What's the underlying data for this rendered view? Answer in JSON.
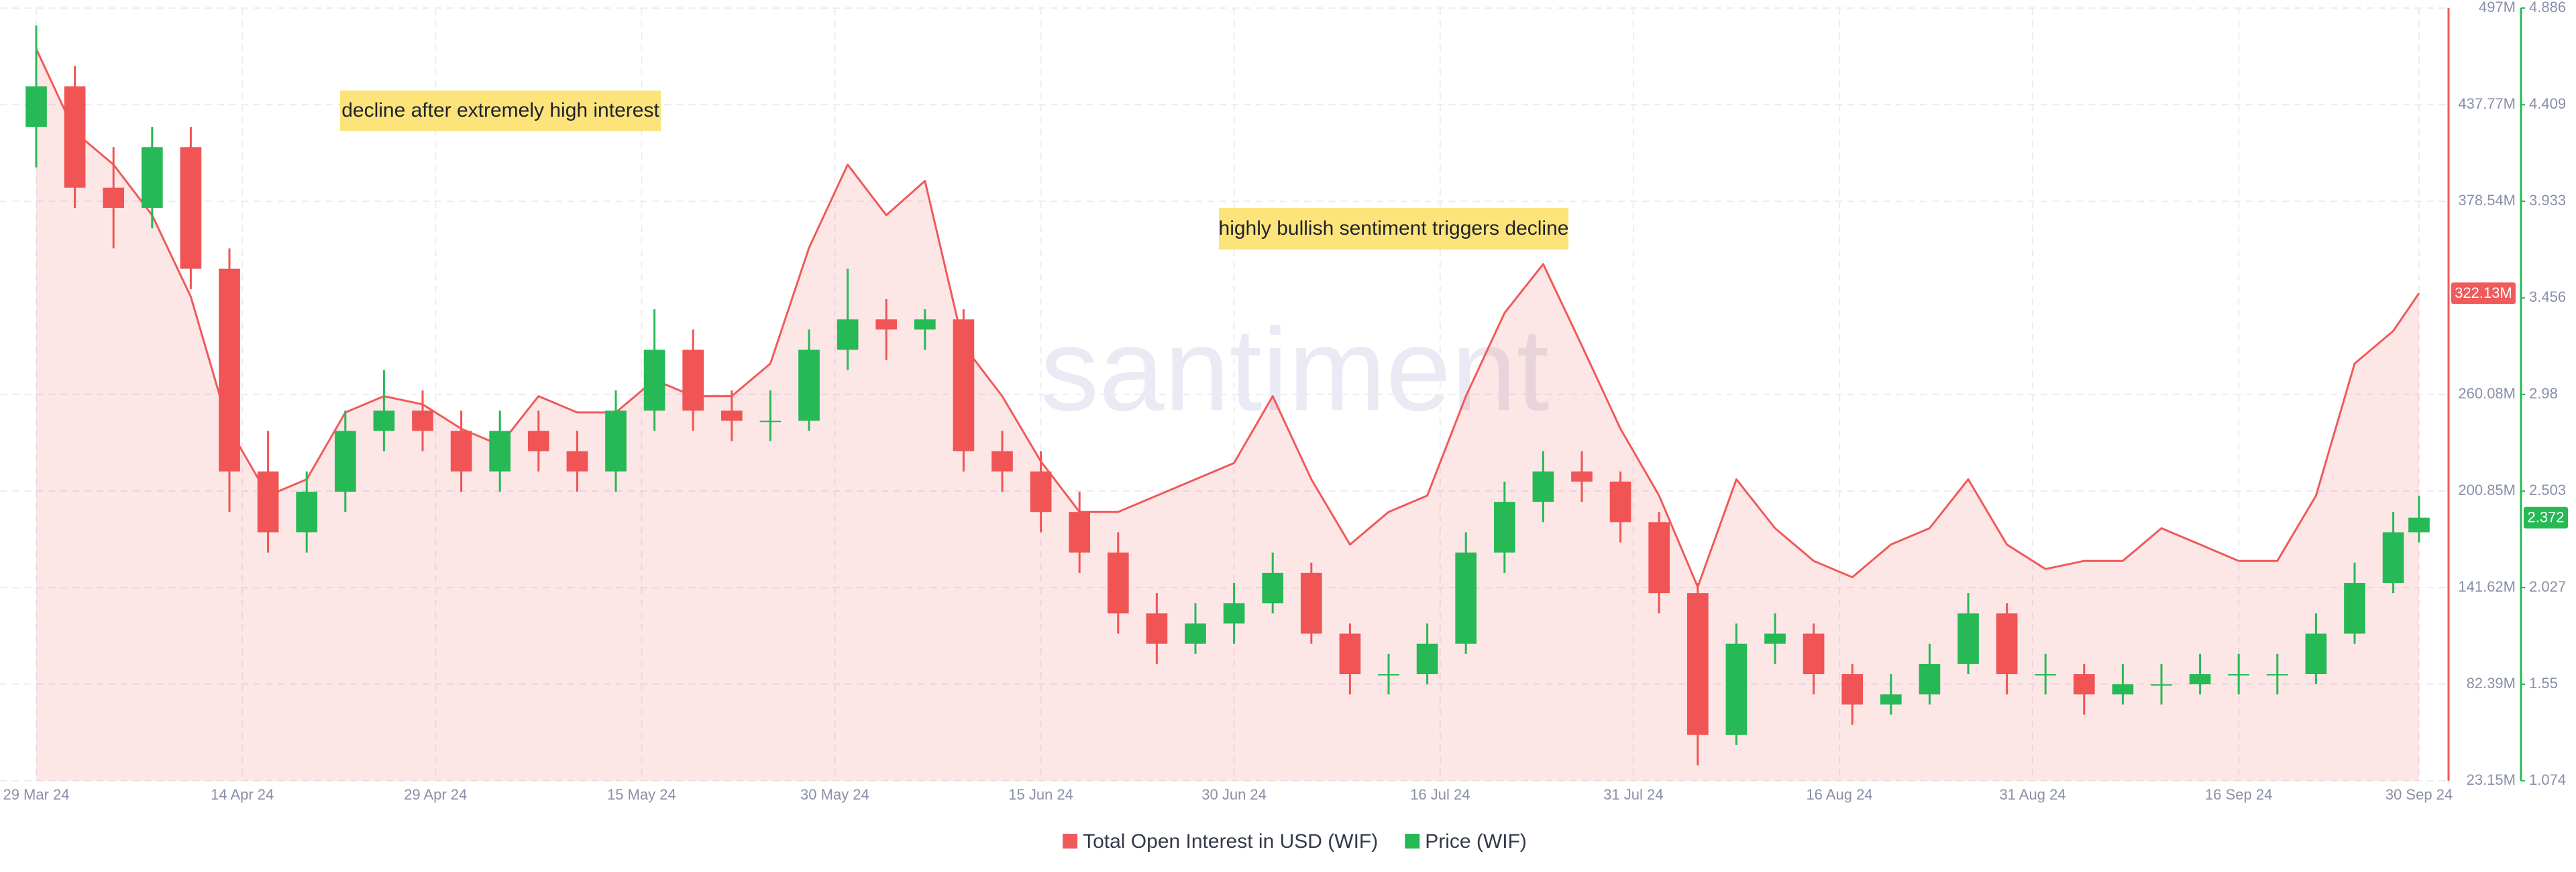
{
  "chart_data": {
    "type": "combo",
    "watermark": "santiment",
    "annotations": [
      "decline after extremely high interest",
      "highly bullish sentiment triggers decline"
    ],
    "x": [
      "2024-03-29",
      "2024-04-01",
      "2024-04-04",
      "2024-04-07",
      "2024-04-10",
      "2024-04-13",
      "2024-04-16",
      "2024-04-19",
      "2024-04-22",
      "2024-04-25",
      "2024-04-28",
      "2024-05-01",
      "2024-05-04",
      "2024-05-07",
      "2024-05-10",
      "2024-05-13",
      "2024-05-16",
      "2024-05-19",
      "2024-05-22",
      "2024-05-25",
      "2024-05-28",
      "2024-05-31",
      "2024-06-03",
      "2024-06-06",
      "2024-06-09",
      "2024-06-12",
      "2024-06-15",
      "2024-06-18",
      "2024-06-21",
      "2024-06-24",
      "2024-06-27",
      "2024-06-30",
      "2024-07-03",
      "2024-07-06",
      "2024-07-09",
      "2024-07-12",
      "2024-07-15",
      "2024-07-18",
      "2024-07-21",
      "2024-07-24",
      "2024-07-27",
      "2024-07-30",
      "2024-08-02",
      "2024-08-05",
      "2024-08-08",
      "2024-08-11",
      "2024-08-14",
      "2024-08-17",
      "2024-08-20",
      "2024-08-23",
      "2024-08-26",
      "2024-08-29",
      "2024-09-01",
      "2024-09-04",
      "2024-09-07",
      "2024-09-10",
      "2024-09-13",
      "2024-09-16",
      "2024-09-19",
      "2024-09-22",
      "2024-09-25",
      "2024-09-28",
      "2024-09-30"
    ],
    "xlim": [
      "2024-03-29",
      "2024-09-30"
    ],
    "xticks": [
      {
        "value": "2024-03-29",
        "label": "29 Mar 24"
      },
      {
        "value": "2024-04-14",
        "label": "14 Apr 24"
      },
      {
        "value": "2024-04-29",
        "label": "29 Apr 24"
      },
      {
        "value": "2024-05-15",
        "label": "15 May 24"
      },
      {
        "value": "2024-05-30",
        "label": "30 May 24"
      },
      {
        "value": "2024-06-15",
        "label": "15 Jun 24"
      },
      {
        "value": "2024-06-30",
        "label": "30 Jun 24"
      },
      {
        "value": "2024-07-16",
        "label": "16 Jul 24"
      },
      {
        "value": "2024-07-31",
        "label": "31 Jul 24"
      },
      {
        "value": "2024-08-16",
        "label": "16 Aug 24"
      },
      {
        "value": "2024-08-31",
        "label": "31 Aug 24"
      },
      {
        "value": "2024-09-16",
        "label": "16 Sep 24"
      },
      {
        "value": "2024-09-30",
        "label": "30 Sep 24"
      }
    ],
    "ylim": [
      23.15,
      497
    ],
    "yticks": [
      {
        "value": 23.15,
        "label": "23.15M"
      },
      {
        "value": 82.39,
        "label": "82.39M"
      },
      {
        "value": 141.62,
        "label": "141.62M"
      },
      {
        "value": 200.85,
        "label": "200.85M"
      },
      {
        "value": 260.08,
        "label": "260.08M"
      },
      {
        "value": 378.54,
        "label": "378.54M"
      },
      {
        "value": 437.77,
        "label": "437.77M"
      },
      {
        "value": 497,
        "label": "497M"
      }
    ],
    "y2lim": [
      1.074,
      4.886
    ],
    "y2ticks": [
      1.074,
      1.55,
      2.027,
      2.503,
      2.98,
      3.456,
      3.933,
      4.409,
      4.886
    ],
    "grid": true,
    "series": [
      {
        "name": "Total Open Interest in USD (WIF)",
        "type": "area",
        "axis": "y",
        "color": "#f05a5a",
        "last_value_label": "322.13M",
        "values": [
          472,
          421,
          401,
          370,
          320,
          239,
          198,
          208,
          249,
          259,
          254,
          239,
          229,
          259,
          249,
          249,
          269,
          259,
          259,
          279,
          350,
          401,
          370,
          391,
          290,
          259,
          219,
          188,
          188,
          198,
          208,
          218,
          259,
          208,
          168,
          188,
          198,
          259,
          310,
          340,
          290,
          239,
          198,
          142,
          208,
          178,
          158,
          148,
          168,
          178,
          208,
          168,
          153,
          158,
          158,
          178,
          168,
          158,
          158,
          198,
          279,
          299,
          322.13
        ]
      },
      {
        "name": "Price (WIF)",
        "type": "candlestick",
        "axis": "y2",
        "color": "#26b956",
        "down_color": "#f05454",
        "open": [
          4.3,
          4.5,
          4.0,
          3.9,
          4.2,
          3.6,
          2.6,
          2.3,
          2.5,
          2.8,
          2.9,
          2.8,
          2.6,
          2.8,
          2.7,
          2.6,
          2.9,
          3.2,
          2.9,
          2.85,
          2.85,
          3.2,
          3.35,
          3.3,
          3.35,
          2.7,
          2.6,
          2.4,
          2.2,
          1.9,
          1.75,
          1.85,
          1.95,
          2.1,
          1.8,
          1.6,
          1.6,
          1.75,
          2.2,
          2.45,
          2.6,
          2.55,
          2.35,
          2.0,
          1.3,
          1.75,
          1.8,
          1.6,
          1.45,
          1.5,
          1.65,
          1.9,
          1.6,
          1.6,
          1.5,
          1.55,
          1.55,
          1.6,
          1.6,
          1.6,
          1.8,
          2.05,
          2.3
        ],
        "high": [
          4.8,
          4.6,
          4.2,
          4.3,
          4.3,
          3.7,
          2.8,
          2.6,
          2.9,
          3.1,
          3.0,
          2.9,
          2.9,
          2.9,
          2.8,
          3.0,
          3.4,
          3.3,
          3.0,
          3.0,
          3.3,
          3.6,
          3.45,
          3.4,
          3.4,
          2.8,
          2.7,
          2.5,
          2.3,
          2.0,
          1.95,
          2.05,
          2.2,
          2.15,
          1.85,
          1.7,
          1.85,
          2.3,
          2.55,
          2.7,
          2.7,
          2.6,
          2.4,
          2.05,
          1.85,
          1.9,
          1.85,
          1.65,
          1.6,
          1.75,
          2.0,
          1.95,
          1.7,
          1.65,
          1.65,
          1.65,
          1.7,
          1.7,
          1.7,
          1.9,
          2.15,
          2.4,
          2.48
        ],
        "low": [
          4.1,
          3.9,
          3.7,
          3.8,
          3.5,
          2.4,
          2.2,
          2.2,
          2.4,
          2.7,
          2.7,
          2.5,
          2.5,
          2.6,
          2.5,
          2.5,
          2.8,
          2.8,
          2.75,
          2.75,
          2.8,
          3.1,
          3.15,
          3.2,
          2.6,
          2.5,
          2.3,
          2.1,
          1.8,
          1.65,
          1.7,
          1.75,
          1.9,
          1.75,
          1.5,
          1.5,
          1.55,
          1.7,
          2.1,
          2.35,
          2.45,
          2.25,
          1.9,
          1.15,
          1.25,
          1.65,
          1.5,
          1.35,
          1.4,
          1.45,
          1.6,
          1.5,
          1.5,
          1.4,
          1.45,
          1.45,
          1.5,
          1.5,
          1.5,
          1.55,
          1.75,
          2.0,
          2.25
        ],
        "close": [
          4.5,
          4.0,
          3.9,
          4.2,
          3.6,
          2.6,
          2.3,
          2.5,
          2.8,
          2.9,
          2.8,
          2.6,
          2.8,
          2.7,
          2.6,
          2.9,
          3.2,
          2.9,
          2.85,
          2.85,
          3.2,
          3.35,
          3.3,
          3.35,
          2.7,
          2.6,
          2.4,
          2.2,
          1.9,
          1.75,
          1.85,
          1.95,
          2.1,
          1.8,
          1.6,
          1.6,
          1.75,
          2.2,
          2.45,
          2.6,
          2.55,
          2.35,
          2.0,
          1.3,
          1.75,
          1.8,
          1.6,
          1.45,
          1.5,
          1.65,
          1.9,
          1.6,
          1.6,
          1.5,
          1.55,
          1.55,
          1.6,
          1.6,
          1.6,
          1.8,
          2.05,
          2.3,
          2.372
        ]
      }
    ]
  }
}
